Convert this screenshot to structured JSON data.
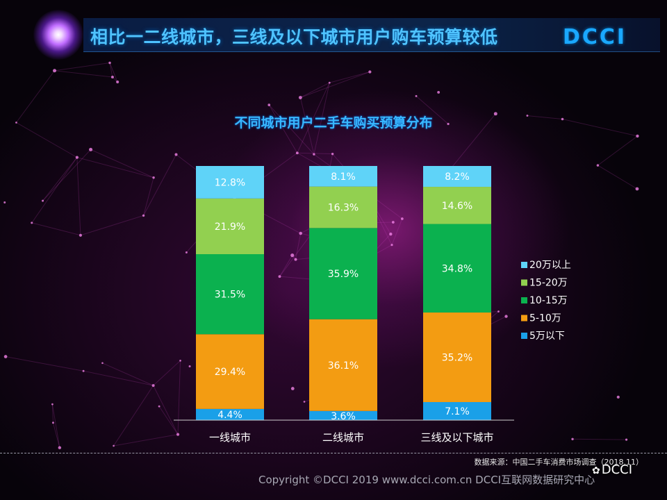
{
  "header": {
    "title": "相比一二线城市，三线及以下城市用户购车预算较低",
    "brand": "DCCI"
  },
  "colors": {
    "s1": "#1aa0e8",
    "s2": "#f39c12",
    "s3": "#0bb14f",
    "s4": "#92d050",
    "s5": "#5fd3f8",
    "title": "#38b8ff"
  },
  "chart_data": {
    "type": "bar",
    "stacked": true,
    "title": "不同城市用户二手车购买预算分布",
    "categories": [
      "一线城市",
      "二线城市",
      "三线及以下城市"
    ],
    "series": [
      {
        "name": "5万以下",
        "values": [
          4.4,
          3.6,
          7.1
        ],
        "labels": [
          "4.4%",
          "3.6%",
          "7.1%"
        ]
      },
      {
        "name": "5-10万",
        "values": [
          29.4,
          36.1,
          35.2
        ],
        "labels": [
          "29.4%",
          "36.1%",
          "35.2%"
        ]
      },
      {
        "name": "10-15万",
        "values": [
          31.5,
          35.9,
          34.8
        ],
        "labels": [
          "31.5%",
          "35.9%",
          "34.8%"
        ]
      },
      {
        "name": "15-20万",
        "values": [
          21.9,
          16.3,
          14.6
        ],
        "labels": [
          "21.9%",
          "16.3%",
          "14.6%"
        ]
      },
      {
        "name": "20万以上",
        "values": [
          12.8,
          8.1,
          8.2
        ],
        "labels": [
          "12.8%",
          "8.1%",
          "8.2%"
        ]
      }
    ],
    "legend_position": "right",
    "ylim": [
      0,
      100
    ]
  },
  "footer": {
    "source": "数据来源：中国二手车消费市场调查（2018.11）",
    "copyright": "Copyright ©DCCI 2019  www.dcci.com.cn  DCCI互联网数据研究中心",
    "watermark": "DCCI"
  }
}
